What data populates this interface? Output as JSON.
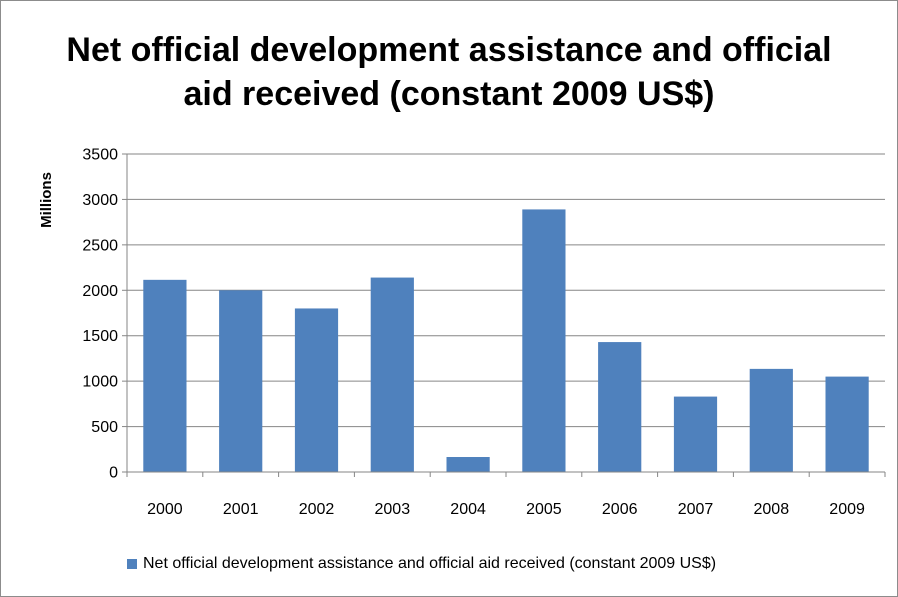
{
  "chart_data": {
    "type": "bar",
    "title_lines": [
      "Net official development assistance and official",
      "aid received (constant 2009 US$)"
    ],
    "ylabel": "Millions",
    "xlabel": "",
    "categories": [
      "2000",
      "2001",
      "2002",
      "2003",
      "2004",
      "2005",
      "2006",
      "2007",
      "2008",
      "2009"
    ],
    "series": [
      {
        "name": "Net official development assistance and official aid received (constant 2009 US$)",
        "color": "#4f81bd",
        "values": [
          2115,
          2000,
          1800,
          2140,
          165,
          2890,
          1430,
          830,
          1135,
          1050
        ]
      }
    ],
    "ylim": [
      0,
      3500
    ],
    "yticks": [
      "0",
      "500",
      "1000",
      "1500",
      "2000",
      "2500",
      "3000",
      "3500"
    ],
    "grid": true,
    "legend_position": "bottom"
  }
}
